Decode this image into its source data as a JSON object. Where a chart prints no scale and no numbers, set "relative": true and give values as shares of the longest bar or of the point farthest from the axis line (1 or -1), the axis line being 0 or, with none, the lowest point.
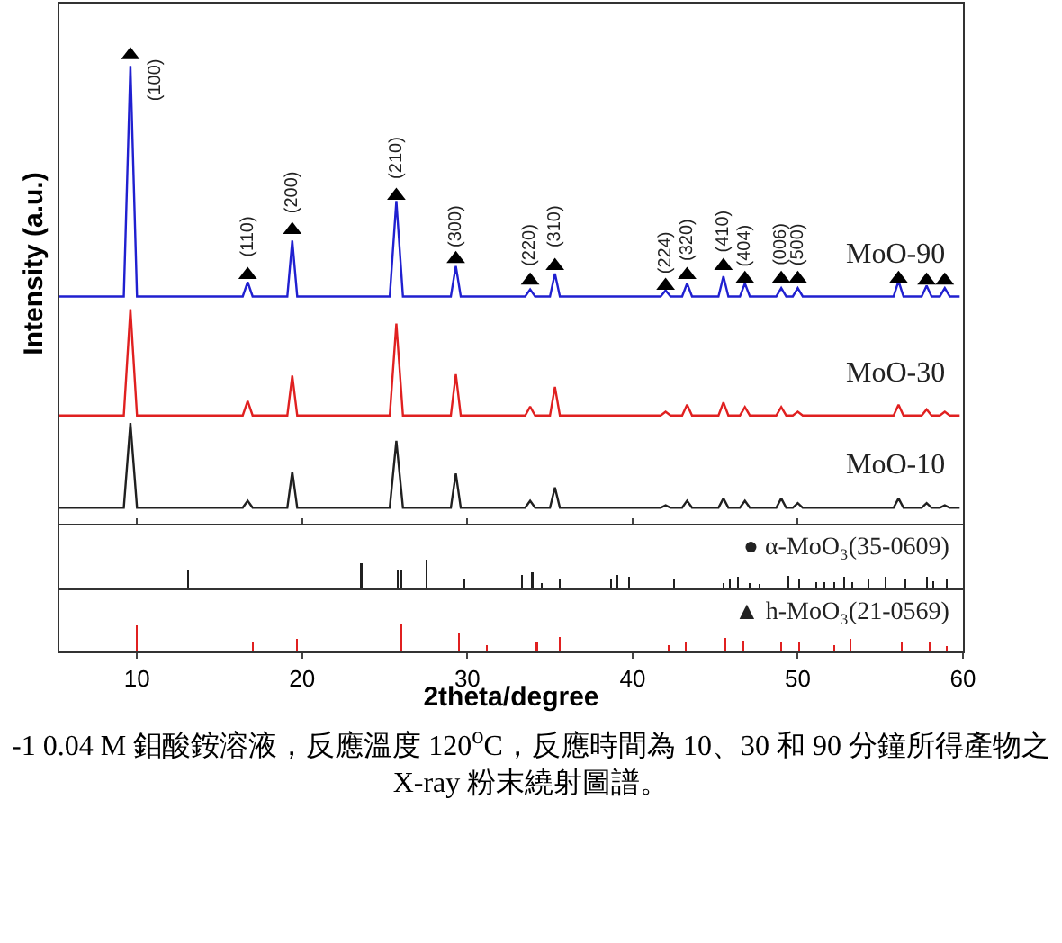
{
  "chart_data": [
    {
      "type": "line",
      "relative": true,
      "ylabel": "Intensity (a.u.)",
      "xlim": [
        5.3,
        60
      ],
      "xticks": [
        10,
        20,
        30,
        40,
        50,
        60
      ],
      "tick_labels": false,
      "legend": false,
      "grid": false,
      "marker": "none",
      "x": [
        5.3,
        9.2,
        9.6,
        10.0,
        16.4,
        16.7,
        17.0,
        19.1,
        19.4,
        19.7,
        25.3,
        25.7,
        26.1,
        29.0,
        29.3,
        29.6,
        33.5,
        33.8,
        34.1,
        35.0,
        35.3,
        35.6,
        41.7,
        42.0,
        42.3,
        43.0,
        43.3,
        43.6,
        45.2,
        45.5,
        45.8,
        46.5,
        46.8,
        47.1,
        48.7,
        49.0,
        49.3,
        49.7,
        50.0,
        50.3,
        55.8,
        56.1,
        56.4,
        57.5,
        57.8,
        58.1,
        58.6,
        58.9,
        59.2,
        59.8
      ],
      "series": [
        {
          "name": "MoO-90",
          "color": "#2020d0",
          "values": [
            0.485,
            0.485,
            0.977,
            0.485,
            0.485,
            0.516,
            0.485,
            0.485,
            0.604,
            0.485,
            0.485,
            0.689,
            0.485,
            0.485,
            0.55,
            0.485,
            0.485,
            0.5,
            0.485,
            0.485,
            0.534,
            0.485,
            0.485,
            0.498,
            0.485,
            0.485,
            0.513,
            0.485,
            0.485,
            0.528,
            0.485,
            0.485,
            0.513,
            0.485,
            0.485,
            0.503,
            0.485,
            0.485,
            0.503,
            0.485,
            0.485,
            0.518,
            0.485,
            0.485,
            0.508,
            0.485,
            0.485,
            0.503,
            0.485,
            0.485
          ]
        },
        {
          "name": "MoO-30",
          "color": "#e02020",
          "values": [
            0.231,
            0.231,
            0.458,
            0.231,
            0.231,
            0.262,
            0.231,
            0.231,
            0.316,
            0.231,
            0.231,
            0.427,
            0.231,
            0.231,
            0.319,
            0.231,
            0.231,
            0.25,
            0.231,
            0.231,
            0.292,
            0.231,
            0.231,
            0.239,
            0.231,
            0.231,
            0.254,
            0.231,
            0.231,
            0.259,
            0.231,
            0.231,
            0.249,
            0.231,
            0.231,
            0.249,
            0.231,
            0.231,
            0.239,
            0.231,
            0.231,
            0.254,
            0.231,
            0.231,
            0.244,
            0.231,
            0.231,
            0.239,
            0.231,
            0.231
          ]
        },
        {
          "name": "MoO-10",
          "color": "#202020",
          "values": [
            0.034,
            0.034,
            0.215,
            0.034,
            0.034,
            0.049,
            0.034,
            0.034,
            0.111,
            0.034,
            0.034,
            0.177,
            0.034,
            0.034,
            0.107,
            0.034,
            0.034,
            0.049,
            0.034,
            0.034,
            0.077,
            0.034,
            0.034,
            0.039,
            0.034,
            0.034,
            0.049,
            0.034,
            0.034,
            0.054,
            0.034,
            0.034,
            0.049,
            0.034,
            0.034,
            0.054,
            0.034,
            0.034,
            0.044,
            0.034,
            0.034,
            0.054,
            0.034,
            0.034,
            0.044,
            0.034,
            0.034,
            0.039,
            0.034,
            0.034
          ]
        },
        {
          "type": "scatter",
          "marker": "triangle",
          "color": "#000000",
          "x": [
            9.6,
            16.7,
            19.4,
            25.7,
            29.3,
            33.8,
            35.3,
            42.0,
            43.3,
            45.5,
            46.8,
            49.0,
            50.0,
            56.1,
            57.8,
            58.9
          ],
          "values": [
            1.0,
            0.531,
            0.627,
            0.7,
            0.565,
            0.519,
            0.55,
            0.508,
            0.531,
            0.55,
            0.523,
            0.523,
            0.523,
            0.523,
            0.519,
            0.519
          ]
        }
      ],
      "annotations": [
        {
          "text": "(100)",
          "x": 9.6,
          "y": 1.0
        },
        {
          "text": "(110)",
          "x": 16.7,
          "y": 0.562
        },
        {
          "text": "(200)",
          "x": 19.4,
          "y": 0.654
        },
        {
          "text": "(210)",
          "x": 25.7,
          "y": 0.727
        },
        {
          "text": "(300)",
          "x": 29.3,
          "y": 0.581
        },
        {
          "text": "(220)",
          "x": 33.8,
          "y": 0.542
        },
        {
          "text": "(310)",
          "x": 35.3,
          "y": 0.581
        },
        {
          "text": "(224)",
          "x": 42.0,
          "y": 0.527
        },
        {
          "text": "(320)",
          "x": 43.3,
          "y": 0.554
        },
        {
          "text": "(410)",
          "x": 45.5,
          "y": 0.573
        },
        {
          "text": "(404)",
          "x": 46.8,
          "y": 0.542
        },
        {
          "text": "(006)",
          "x": 49.0,
          "y": 0.542
        },
        {
          "text": "(500)",
          "x": 50.0,
          "y": 0.542
        }
      ]
    },
    {
      "type": "bar",
      "relative": true,
      "xlim": [
        5.3,
        60
      ],
      "xticks": [
        10,
        20,
        30,
        40,
        50,
        60
      ],
      "tick_labels": false,
      "legend": false,
      "grid": false,
      "annotations": [
        "● α-MoO₃(35-0609)"
      ],
      "x": [
        13.07,
        23.58,
        25.8,
        26.0,
        27.54,
        29.8,
        33.3,
        33.93,
        34.5,
        35.6,
        38.7,
        39.1,
        39.8,
        42.5,
        45.5,
        45.9,
        46.4,
        47.1,
        47.7,
        49.4,
        50.1,
        51.1,
        51.6,
        52.2,
        52.8,
        53.3,
        54.3,
        55.3,
        56.5,
        57.8,
        58.2,
        59.0
      ],
      "series": [
        {
          "color": "#202020",
          "values": [
            0.65,
            0.88,
            0.63,
            0.63,
            1.0,
            0.35,
            0.47,
            0.56,
            0.19,
            0.33,
            0.33,
            0.47,
            0.42,
            0.35,
            0.19,
            0.3,
            0.4,
            0.19,
            0.16,
            0.44,
            0.33,
            0.21,
            0.21,
            0.21,
            0.4,
            0.21,
            0.3,
            0.4,
            0.35,
            0.4,
            0.26,
            0.35
          ]
        }
      ]
    },
    {
      "type": "bar",
      "relative": true,
      "xlabel": "2theta/degree",
      "xlim": [
        5.3,
        60
      ],
      "xticks": [
        10,
        20,
        30,
        40,
        50,
        60
      ],
      "tick_labels": "x",
      "legend": false,
      "grid": false,
      "annotations": [
        "▲ h-MoO₃(21-0569)",
        "-1 0.04 M 鉬酸銨溶液，反應溫度 120$^{o}$C，反應時間為 10、30 和 90 分鐘所得產物之 X-ray 粉末繞射圖譜。"
      ],
      "x": [
        10.0,
        17.0,
        19.7,
        26.0,
        29.5,
        31.2,
        34.2,
        35.6,
        42.2,
        43.2,
        45.6,
        46.7,
        49.0,
        50.1,
        52.2,
        53.2,
        56.3,
        58.0,
        59.0
      ],
      "series": [
        {
          "color": "#e02020",
          "values": [
            0.93,
            0.37,
            0.44,
            1.0,
            0.66,
            0.24,
            0.34,
            0.51,
            0.22,
            0.37,
            0.49,
            0.39,
            0.37,
            0.32,
            0.22,
            0.44,
            0.34,
            0.32,
            0.2
          ]
        }
      ]
    }
  ]
}
